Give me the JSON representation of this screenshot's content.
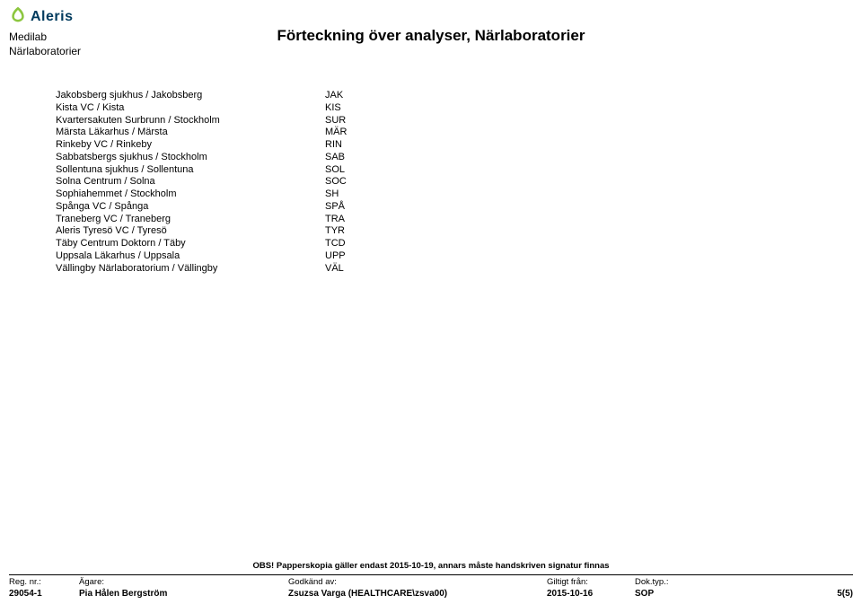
{
  "brand": {
    "name": "Aleris",
    "logo_icon_color": "#8cc63f",
    "logo_text_color": "#003a5d"
  },
  "header": {
    "line1": "Medilab",
    "line2": "Närlaboratorier",
    "title": "Förteckning över analyser, Närlaboratorier"
  },
  "rows": [
    {
      "name": "Jakobsberg sjukhus / Jakobsberg",
      "code": "JAK"
    },
    {
      "name": "Kista VC / Kista",
      "code": "KIS"
    },
    {
      "name": "Kvartersakuten Surbrunn / Stockholm",
      "code": "SUR"
    },
    {
      "name": "Märsta Läkarhus / Märsta",
      "code": "MÄR"
    },
    {
      "name": "Rinkeby VC / Rinkeby",
      "code": "RIN"
    },
    {
      "name": "Sabbatsbergs sjukhus / Stockholm",
      "code": "SAB"
    },
    {
      "name": "Sollentuna sjukhus / Sollentuna",
      "code": "SOL"
    },
    {
      "name": "Solna Centrum / Solna",
      "code": "SOC"
    },
    {
      "name": "Sophiahemmet / Stockholm",
      "code": "SH"
    },
    {
      "name": "Spånga VC / Spånga",
      "code": "SPÅ"
    },
    {
      "name": "Traneberg VC / Traneberg",
      "code": "TRA"
    },
    {
      "name": "Aleris Tyresö VC / Tyresö",
      "code": "TYR"
    },
    {
      "name": "Täby Centrum Doktorn / Täby",
      "code": "TCD"
    },
    {
      "name": "Uppsala Läkarhus / Uppsala",
      "code": "UPP"
    },
    {
      "name": "Vällingby Närlaboratorium / Vällingby",
      "code": "VÄL"
    }
  ],
  "footer": {
    "obs": "OBS! Papperskopia gäller endast 2015-10-19, annars måste handskriven signatur finnas",
    "labels": {
      "reg": "Reg. nr.:",
      "owner": "Ägare:",
      "approved": "Godkänd av:",
      "valid": "Giltigt från:",
      "doctype": "Dok.typ.:"
    },
    "values": {
      "reg": "29054-1",
      "owner": "Pia Hålen Bergström",
      "approved": "Zsuzsa Varga (HEALTHCARE\\zsva00)",
      "valid": "2015-10-16",
      "doctype": "SOP"
    },
    "page": "5(5)"
  }
}
